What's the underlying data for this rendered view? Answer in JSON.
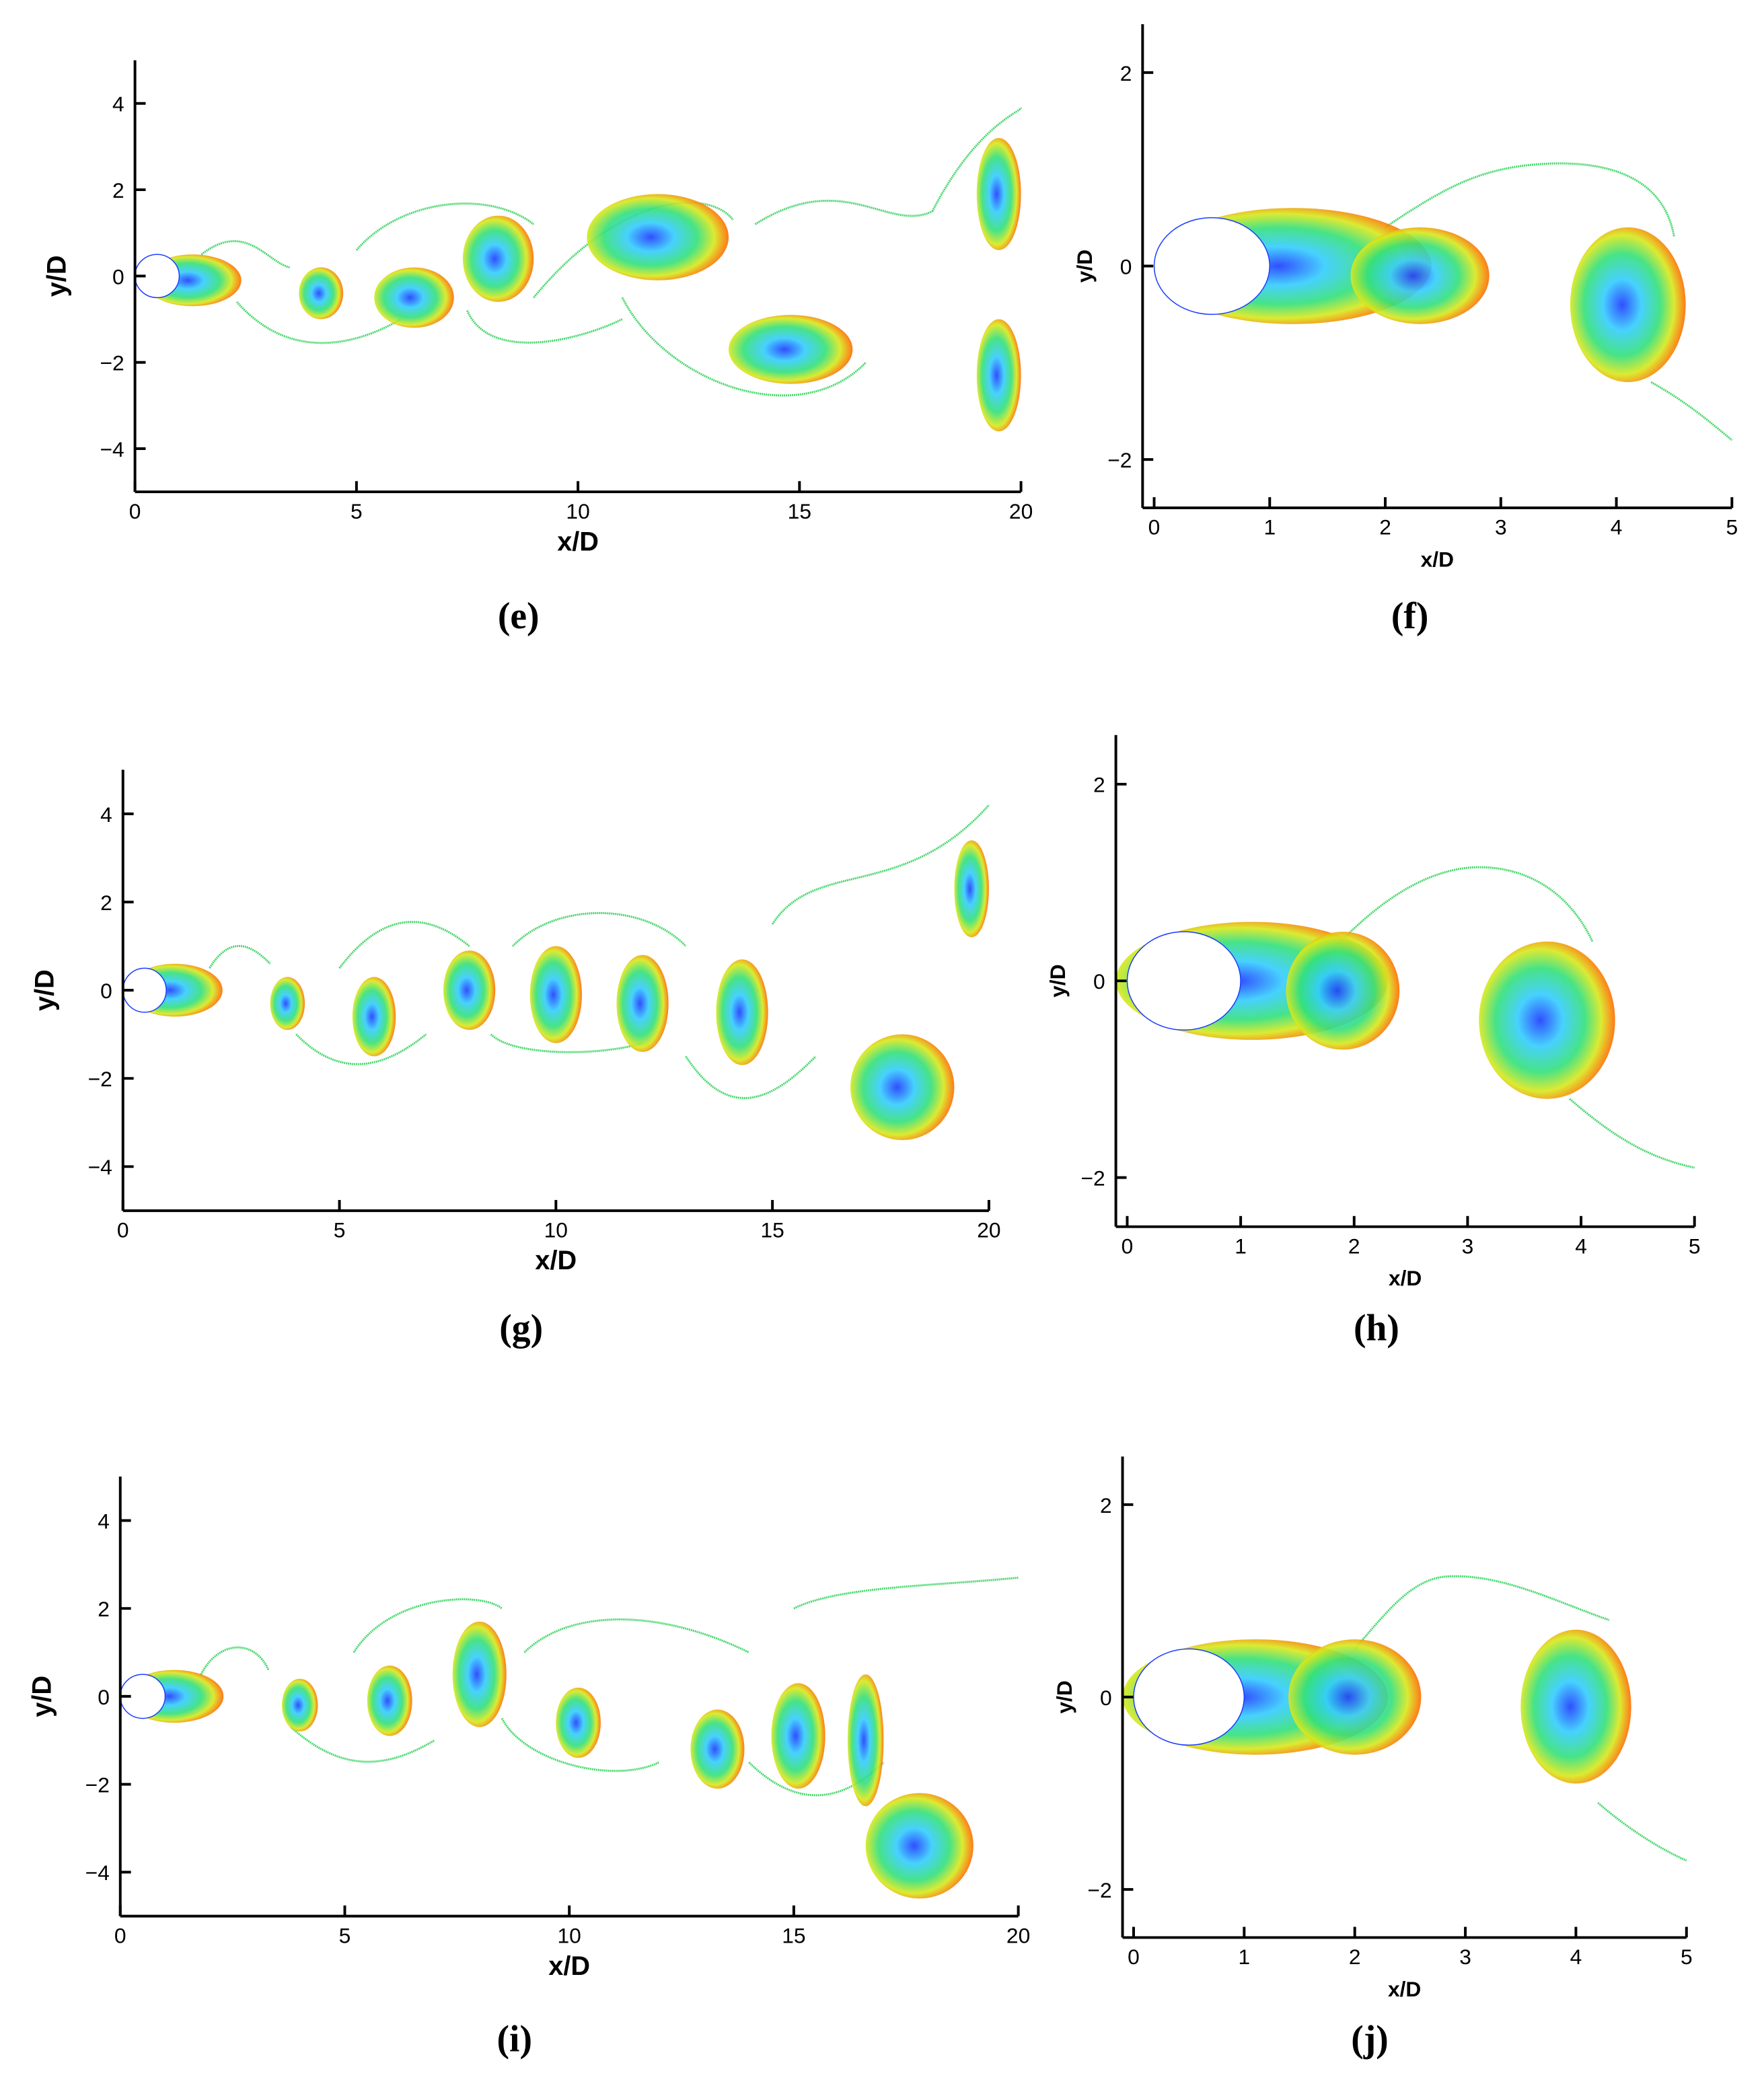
{
  "chart_data": [
    {
      "type": "field",
      "caption": "(e)",
      "xlabel": "x/D",
      "ylabel": "y/D",
      "xlim": [
        0,
        20
      ],
      "ylim": [
        -5,
        5
      ],
      "xticks": [
        0,
        5,
        10,
        15,
        20
      ],
      "yticks": [
        {
          "value": -4,
          "label": "−4"
        },
        {
          "value": -2,
          "label": "−2"
        },
        0,
        2,
        4
      ]
    },
    {
      "type": "field",
      "caption": "(f)",
      "xlabel": "x/D",
      "ylabel": "y/D",
      "xlim": [
        -0.1,
        5
      ],
      "ylim": [
        -2.5,
        2.5
      ],
      "xticks": [
        0,
        1,
        2,
        3,
        4,
        5
      ],
      "yticks": [
        {
          "value": -2,
          "label": "−2"
        },
        0,
        2
      ]
    },
    {
      "type": "field",
      "caption": "(g)",
      "xlabel": "x/D",
      "ylabel": "y/D",
      "xlim": [
        0,
        20
      ],
      "ylim": [
        -5,
        5
      ],
      "xticks": [
        0,
        5,
        10,
        15,
        20
      ],
      "yticks": [
        {
          "value": -4,
          "label": "−4"
        },
        {
          "value": -2,
          "label": "−2"
        },
        0,
        2,
        4
      ]
    },
    {
      "type": "field",
      "caption": "(h)",
      "xlabel": "x/D",
      "ylabel": "y/D",
      "xlim": [
        -0.1,
        5
      ],
      "ylim": [
        -2.5,
        2.5
      ],
      "xticks": [
        0,
        1,
        2,
        3,
        4,
        5
      ],
      "yticks": [
        {
          "value": -2,
          "label": "−2"
        },
        0,
        2
      ]
    },
    {
      "type": "field",
      "caption": "(i)",
      "xlabel": "x/D",
      "ylabel": "y/D",
      "xlim": [
        0,
        20
      ],
      "ylim": [
        -5,
        5
      ],
      "xticks": [
        0,
        5,
        10,
        15,
        20
      ],
      "yticks": [
        {
          "value": -4,
          "label": "−4"
        },
        {
          "value": -2,
          "label": "−2"
        },
        0,
        2,
        4
      ]
    },
    {
      "type": "field",
      "caption": "(j)",
      "xlabel": "x/D",
      "ylabel": "y/D",
      "xlim": [
        -0.1,
        5
      ],
      "ylim": [
        -2.5,
        2.5
      ],
      "xticks": [
        0,
        1,
        2,
        3,
        4,
        5
      ],
      "yticks": [
        {
          "value": -2,
          "label": "−2"
        },
        0,
        2
      ]
    }
  ]
}
